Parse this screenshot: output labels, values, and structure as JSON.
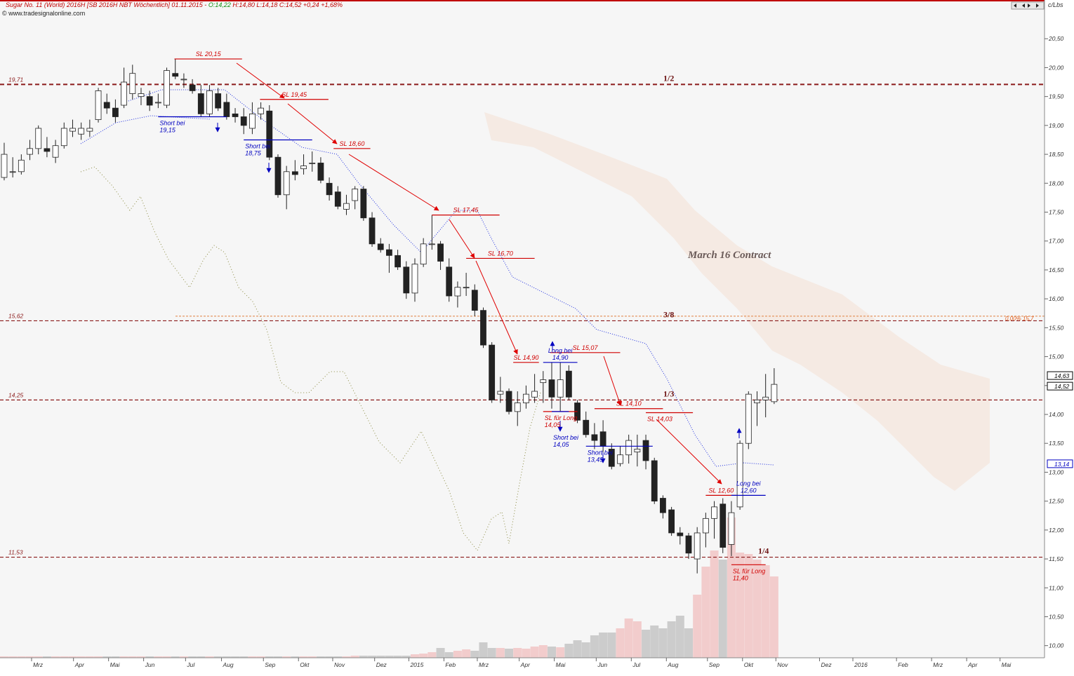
{
  "chart_data": {
    "type": "candlestick",
    "title_parts": [
      "Sugar No. 11 (World) 2016H [SB 2016H NBT  Wöchentlich] 01.11.2015 - ",
      "O:14,22",
      " H:14,80 L:14,18 C:14,52 +0,24 +1,68%"
    ],
    "subtitle": "© www.tradesignalonline.com",
    "unit": "c/Lbs",
    "annotation_text": "March 16 Contract",
    "ylim": [
      9.79,
      21.17
    ],
    "yticks": [
      {
        "value": 10,
        "label": "10,00"
      },
      {
        "value": 10.5,
        "label": "10,50"
      },
      {
        "value": 11,
        "label": "11,00"
      },
      {
        "value": 11.5,
        "label": "11,50"
      },
      {
        "value": 12,
        "label": "12,00"
      },
      {
        "value": 12.5,
        "label": "12,50"
      },
      {
        "value": 13,
        "label": "13,00"
      },
      {
        "value": 13.5,
        "label": "13,50"
      },
      {
        "value": 14,
        "label": "14,00"
      },
      {
        "value": 14.5,
        "label": "14,50"
      },
      {
        "value": 15,
        "label": "15,00"
      },
      {
        "value": 15.5,
        "label": "15,50"
      },
      {
        "value": 16,
        "label": "16,00"
      },
      {
        "value": 16.5,
        "label": "16,50"
      },
      {
        "value": 17,
        "label": "17,00"
      },
      {
        "value": 17.5,
        "label": "17,50"
      },
      {
        "value": 18,
        "label": "18,00"
      },
      {
        "value": 18.5,
        "label": "18,50"
      },
      {
        "value": 19,
        "label": "19,00"
      },
      {
        "value": 19.5,
        "label": "19,50"
      },
      {
        "value": 20,
        "label": "20,00"
      },
      {
        "value": 20.5,
        "label": "20,50"
      }
    ],
    "xlim": [
      -0.49,
      121.6
    ],
    "xticks": [
      {
        "value": 3.2,
        "label": "Mrz"
      },
      {
        "value": 8.1,
        "label": "Apr"
      },
      {
        "value": 12.2,
        "label": "Mai"
      },
      {
        "value": 16.3,
        "label": "Jun"
      },
      {
        "value": 21.2,
        "label": "Jul"
      },
      {
        "value": 25.4,
        "label": "Aug"
      },
      {
        "value": 30.3,
        "label": "Sep"
      },
      {
        "value": 34.4,
        "label": "Okt"
      },
      {
        "value": 38.4,
        "label": "Nov"
      },
      {
        "value": 43.3,
        "label": "Dez"
      },
      {
        "value": 47.3,
        "label": "2015"
      },
      {
        "value": 51.4,
        "label": "Feb"
      },
      {
        "value": 55.3,
        "label": "Mrz"
      },
      {
        "value": 60.2,
        "label": "Apr"
      },
      {
        "value": 64.3,
        "label": "Mai"
      },
      {
        "value": 69.2,
        "label": "Jun"
      },
      {
        "value": 73.3,
        "label": "Jul"
      },
      {
        "value": 77.4,
        "label": "Aug"
      },
      {
        "value": 82.2,
        "label": "Sep"
      },
      {
        "value": 86.3,
        "label": "Okt"
      },
      {
        "value": 90.2,
        "label": "Nov"
      },
      {
        "value": 95.3,
        "label": "Dez"
      },
      {
        "value": 99.2,
        "label": "2016"
      },
      {
        "value": 104.3,
        "label": "Feb"
      },
      {
        "value": 108.4,
        "label": "Mrz"
      },
      {
        "value": 112.5,
        "label": "Apr"
      },
      {
        "value": 116.4,
        "label": "Mai"
      }
    ],
    "candles": [
      [
        18.1,
        18.7,
        18.05,
        18.5
      ],
      [
        18.2,
        18.45,
        18.1,
        18.2
      ],
      [
        18.2,
        18.5,
        18.15,
        18.4
      ],
      [
        18.5,
        18.75,
        18.4,
        18.6
      ],
      [
        18.6,
        19.0,
        18.5,
        18.95
      ],
      [
        18.6,
        18.8,
        18.45,
        18.55
      ],
      [
        18.45,
        18.75,
        18.35,
        18.65
      ],
      [
        18.65,
        19.05,
        18.6,
        18.95
      ],
      [
        18.9,
        19.1,
        18.8,
        18.95
      ],
      [
        18.85,
        19.05,
        18.75,
        18.95
      ],
      [
        18.9,
        19.1,
        18.8,
        18.95
      ],
      [
        19.1,
        19.65,
        19.05,
        19.6
      ],
      [
        19.4,
        19.55,
        19.2,
        19.3
      ],
      [
        19.3,
        19.45,
        19.05,
        19.15
      ],
      [
        19.35,
        20.0,
        19.3,
        19.75
      ],
      [
        19.55,
        20.05,
        19.45,
        19.9
      ],
      [
        19.5,
        19.65,
        19.35,
        19.55
      ],
      [
        19.5,
        19.6,
        19.25,
        19.35
      ],
      [
        19.4,
        19.55,
        19.3,
        19.4
      ],
      [
        19.35,
        20.0,
        19.3,
        19.95
      ],
      [
        19.9,
        20.15,
        19.8,
        19.85
      ],
      [
        19.8,
        19.9,
        19.65,
        19.8
      ],
      [
        19.7,
        19.8,
        19.55,
        19.6
      ],
      [
        19.55,
        19.7,
        19.15,
        19.2
      ],
      [
        19.2,
        19.7,
        19.15,
        19.6
      ],
      [
        19.55,
        19.65,
        19.25,
        19.3
      ],
      [
        19.4,
        19.55,
        19.1,
        19.15
      ],
      [
        19.2,
        19.3,
        19.05,
        19.15
      ],
      [
        19.15,
        19.3,
        18.85,
        19.0
      ],
      [
        18.95,
        19.4,
        18.85,
        19.2
      ],
      [
        19.2,
        19.4,
        19.1,
        19.3
      ],
      [
        19.25,
        19.35,
        18.4,
        18.45
      ],
      [
        18.45,
        18.5,
        17.75,
        17.8
      ],
      [
        17.8,
        18.3,
        17.55,
        18.2
      ],
      [
        18.2,
        18.4,
        18.05,
        18.15
      ],
      [
        18.25,
        18.5,
        18.15,
        18.3
      ],
      [
        18.35,
        18.55,
        18.2,
        18.35
      ],
      [
        18.35,
        18.45,
        18.0,
        18.05
      ],
      [
        18.0,
        18.1,
        17.7,
        17.8
      ],
      [
        17.85,
        17.95,
        17.55,
        17.6
      ],
      [
        17.55,
        17.8,
        17.45,
        17.65
      ],
      [
        17.7,
        17.95,
        17.55,
        17.9
      ],
      [
        17.9,
        17.95,
        17.35,
        17.4
      ],
      [
        17.4,
        17.5,
        16.9,
        16.95
      ],
      [
        16.95,
        17.05,
        16.8,
        16.85
      ],
      [
        16.85,
        16.95,
        16.45,
        16.75
      ],
      [
        16.75,
        16.85,
        16.5,
        16.55
      ],
      [
        16.55,
        16.65,
        16.0,
        16.1
      ],
      [
        16.1,
        16.7,
        15.95,
        16.6
      ],
      [
        16.6,
        17.05,
        16.55,
        16.95
      ],
      [
        16.95,
        17.45,
        16.85,
        16.95
      ],
      [
        16.95,
        17.0,
        16.5,
        16.65
      ],
      [
        16.55,
        16.7,
        15.95,
        16.05
      ],
      [
        16.05,
        16.3,
        15.85,
        16.2
      ],
      [
        16.2,
        16.45,
        16.05,
        16.2
      ],
      [
        16.15,
        16.25,
        15.7,
        15.8
      ],
      [
        15.8,
        15.85,
        15.15,
        15.2
      ],
      [
        15.2,
        15.25,
        14.2,
        14.25
      ],
      [
        14.35,
        14.65,
        14.2,
        14.4
      ],
      [
        14.4,
        14.45,
        14.0,
        14.05
      ],
      [
        14.05,
        14.4,
        13.8,
        14.2
      ],
      [
        14.2,
        14.5,
        14.1,
        14.35
      ],
      [
        14.3,
        14.7,
        14.2,
        14.4
      ],
      [
        14.55,
        14.75,
        14.2,
        14.6
      ],
      [
        14.6,
        14.9,
        14.1,
        14.3
      ],
      [
        14.3,
        14.9,
        14.05,
        14.6
      ],
      [
        14.75,
        14.85,
        14.25,
        14.3
      ],
      [
        14.2,
        14.25,
        13.85,
        13.9
      ],
      [
        13.9,
        14.05,
        13.6,
        13.65
      ],
      [
        13.65,
        13.85,
        13.4,
        13.55
      ],
      [
        13.7,
        13.9,
        13.35,
        13.45
      ],
      [
        13.4,
        13.5,
        13.05,
        13.1
      ],
      [
        13.15,
        13.45,
        13.1,
        13.3
      ],
      [
        13.3,
        13.65,
        13.15,
        13.55
      ],
      [
        13.35,
        13.65,
        13.1,
        13.4
      ],
      [
        13.55,
        13.65,
        13.05,
        13.2
      ],
      [
        13.2,
        13.25,
        12.45,
        12.5
      ],
      [
        12.55,
        12.6,
        12.2,
        12.3
      ],
      [
        12.35,
        12.4,
        11.9,
        11.95
      ],
      [
        11.95,
        12.05,
        11.75,
        11.9
      ],
      [
        11.9,
        11.95,
        11.5,
        11.6
      ],
      [
        11.5,
        12.05,
        11.25,
        11.95
      ],
      [
        11.95,
        12.3,
        11.7,
        12.2
      ],
      [
        12.2,
        12.5,
        11.85,
        12.4
      ],
      [
        12.45,
        12.55,
        11.6,
        11.7
      ],
      [
        11.75,
        12.5,
        11.55,
        12.3
      ],
      [
        12.4,
        13.55,
        12.35,
        13.5
      ],
      [
        13.5,
        14.4,
        13.4,
        14.35
      ],
      [
        14.2,
        14.4,
        13.8,
        14.25
      ],
      [
        14.25,
        14.7,
        13.95,
        14.3
      ],
      [
        14.22,
        14.8,
        14.18,
        14.52
      ]
    ],
    "volume_lim": [
      0,
      220
    ],
    "volume": [
      2,
      2,
      2,
      2,
      2,
      2,
      2,
      2,
      2,
      2,
      2,
      2,
      2,
      2,
      2,
      2,
      2,
      2,
      2,
      2,
      2,
      2,
      2,
      2,
      2,
      2,
      2,
      2,
      2,
      2,
      2,
      2,
      2,
      2,
      2,
      2,
      2,
      2,
      2,
      2,
      2,
      3,
      3,
      3,
      3,
      3,
      3,
      3,
      5,
      6,
      8,
      14,
      8,
      10,
      12,
      10,
      22,
      14,
      14,
      13,
      14,
      13,
      16,
      18,
      16,
      15,
      20,
      25,
      22,
      32,
      36,
      36,
      42,
      56,
      52,
      40,
      46,
      42,
      52,
      60,
      42,
      90,
      130,
      153,
      140,
      200,
      150,
      148,
      140,
      132,
      116
    ],
    "levels": [
      {
        "value": 19.71,
        "label": "19,71",
        "name": "1/2"
      },
      {
        "value": 15.62,
        "label": "15,62",
        "name": "3/8"
      },
      {
        "value": 14.25,
        "label": "14,25",
        "name": "1/3"
      },
      {
        "value": 11.53,
        "label": "11,53",
        "name": "1/4"
      }
    ],
    "orange_level": {
      "value": 15.7,
      "label": "0,00%   15,7"
    },
    "price_markers": [
      {
        "value": 14.63,
        "label": "14,63",
        "color": "#000000"
      },
      {
        "value": 14.52,
        "label": "14,52",
        "color": "#000000"
      },
      {
        "value": 13.14,
        "label": "13,14",
        "color": "#0000c0"
      }
    ],
    "annotations": [
      {
        "lines": [
          "SL 20,15"
        ],
        "color": "#d00000",
        "level": 20.15,
        "from": 19.9,
        "to": 27.8,
        "pos": "above"
      },
      {
        "lines": [
          "SL 19,45"
        ],
        "color": "#d00000",
        "level": 19.45,
        "from": 29.9,
        "to": 37.9,
        "pos": "above"
      },
      {
        "lines": [
          "SL 18,60"
        ],
        "color": "#d00000",
        "level": 18.6,
        "from": 38.5,
        "to": 42.8,
        "pos": "above"
      },
      {
        "lines": [
          "SL 17,45"
        ],
        "color": "#d00000",
        "level": 17.45,
        "from": 50,
        "to": 57.9,
        "pos": "above"
      },
      {
        "lines": [
          "SL 16,70"
        ],
        "color": "#d00000",
        "level": 16.7,
        "from": 54,
        "to": 62,
        "pos": "above"
      },
      {
        "lines": [
          "SL 14,90"
        ],
        "color": "#d00000",
        "level": 14.9,
        "from": 59.5,
        "to": 62.5,
        "pos": "above"
      },
      {
        "lines": [
          "SL 15,07"
        ],
        "color": "#d00000",
        "level": 15.07,
        "from": 63.8,
        "to": 72,
        "pos": "above"
      },
      {
        "lines": [
          "SL 14,10"
        ],
        "color": "#d00000",
        "level": 14.1,
        "from": 69,
        "to": 77,
        "pos": "above"
      },
      {
        "lines": [
          "SL 14,03"
        ],
        "color": "#d00000",
        "level": 14.03,
        "from": 75,
        "to": 80.5,
        "pos": "below"
      },
      {
        "lines": [
          "SL 12,60"
        ],
        "color": "#d00000",
        "level": 12.6,
        "from": 82,
        "to": 85.6,
        "pos": "above"
      },
      {
        "lines": [
          "SL für Long",
          "11,40"
        ],
        "color": "#d00000",
        "level": 11.4,
        "from": 85,
        "to": 89,
        "pos": "below"
      },
      {
        "lines": [
          "SL für Long",
          "14,05"
        ],
        "color": "#d00000",
        "level": 14.05,
        "from": 63,
        "to": 67,
        "pos": "below"
      },
      {
        "lines": [
          "Short bei",
          "19,15"
        ],
        "color": "#0000c0",
        "level": 19.15,
        "from": 18,
        "to": 26,
        "pos": "below"
      },
      {
        "lines": [
          "Short bei",
          "18,75"
        ],
        "color": "#0000c0",
        "level": 18.75,
        "from": 28,
        "to": 36,
        "pos": "below"
      },
      {
        "lines": [
          "Long bei",
          "14,90"
        ],
        "color": "#0000c0",
        "level": 14.9,
        "from": 63,
        "to": 67,
        "pos": "above"
      },
      {
        "lines": [
          "Short bei",
          "14,05"
        ],
        "color": "#0000c0",
        "level": 14.05,
        "from": 64,
        "to": 66,
        "pos": "far-below"
      },
      {
        "lines": [
          "Short bei",
          "13,45"
        ],
        "color": "#0000c0",
        "level": 13.45,
        "from": 68,
        "to": 75.8,
        "pos": "below"
      },
      {
        "lines": [
          "Long bei",
          "12,60"
        ],
        "color": "#0000c0",
        "level": 12.6,
        "from": 85,
        "to": 89,
        "pos": "above"
      }
    ]
  }
}
